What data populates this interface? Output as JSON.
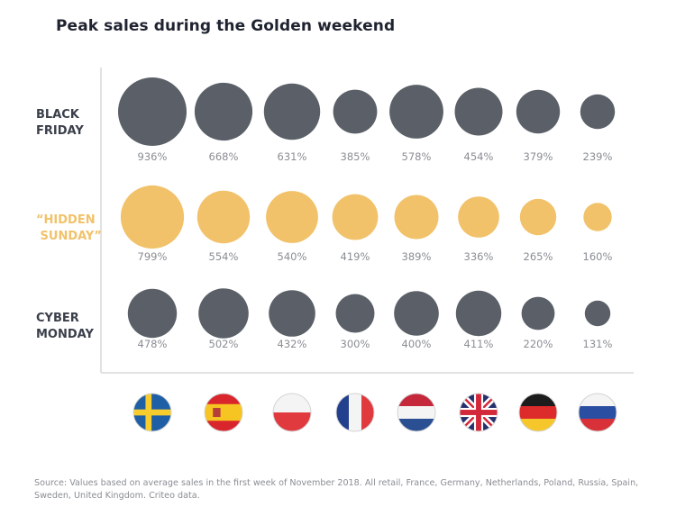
{
  "title": "Peak sales during the Golden weekend",
  "source": "Source: Values based on average sales in the first week of November 2018. All retail, France, Germany, Netherlands, Poland, Russia, Spain, Sweden, United Kingdom. Criteo data.",
  "colors": {
    "dark": "#5b6068",
    "gold": "#f1c26a",
    "axis": "#d9d9d9",
    "gold_text": "#f1c26a",
    "dark_text": "#3a3f4a"
  },
  "countries": [
    {
      "name": "Sweden",
      "flag": "sweden-flag-icon"
    },
    {
      "name": "Spain",
      "flag": "spain-flag-icon"
    },
    {
      "name": "Poland",
      "flag": "poland-flag-icon"
    },
    {
      "name": "France",
      "flag": "france-flag-icon"
    },
    {
      "name": "Netherlands",
      "flag": "netherlands-flag-icon"
    },
    {
      "name": "United Kingdom",
      "flag": "uk-flag-icon"
    },
    {
      "name": "Germany",
      "flag": "germany-flag-icon"
    },
    {
      "name": "Russia",
      "flag": "russia-flag-icon"
    }
  ],
  "chart_data": {
    "type": "bubble",
    "title": "Peak sales during the Golden weekend",
    "unit": "%",
    "categories": [
      "Sweden",
      "Spain",
      "Poland",
      "France",
      "Netherlands",
      "United Kingdom",
      "Germany",
      "Russia"
    ],
    "series": [
      {
        "name": "BLACK FRIDAY",
        "label_lines": [
          "BLACK",
          "FRIDAY"
        ],
        "color": "#5b6068",
        "values": [
          936,
          668,
          631,
          385,
          578,
          454,
          379,
          239
        ],
        "labels": [
          "936%",
          "668%",
          "631%",
          "385%",
          "578%",
          "454%",
          "379%",
          "239%"
        ]
      },
      {
        "name": "\"HIDDEN SUNDAY\"",
        "label_lines": [
          "“HIDDEN",
          " SUNDAY”"
        ],
        "color": "#f1c26a",
        "values": [
          799,
          554,
          540,
          419,
          389,
          336,
          265,
          160
        ],
        "labels": [
          "799%",
          "554%",
          "540%",
          "419%",
          "389%",
          "336%",
          "265%",
          "160%"
        ]
      },
      {
        "name": "CYBER MONDAY",
        "label_lines": [
          "CYBER",
          "MONDAY"
        ],
        "color": "#5b6068",
        "values": [
          478,
          502,
          432,
          300,
          400,
          411,
          220,
          131
        ],
        "labels": [
          "478%",
          "502%",
          "432%",
          "300%",
          "400%",
          "411%",
          "220%",
          "131%"
        ]
      }
    ]
  }
}
